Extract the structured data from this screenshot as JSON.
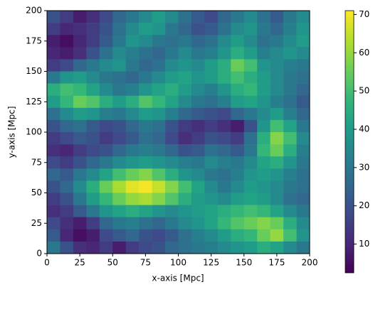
{
  "chart_data": {
    "type": "heatmap",
    "xlabel": "x-axis [Mpc]",
    "ylabel": "y-axis [Mpc]",
    "x": [
      5,
      15,
      25,
      35,
      45,
      55,
      65,
      75,
      85,
      95,
      105,
      115,
      125,
      135,
      145,
      155,
      165,
      175,
      185,
      195
    ],
    "y": [
      195,
      185,
      175,
      165,
      155,
      145,
      135,
      125,
      115,
      105,
      95,
      85,
      75,
      65,
      55,
      45,
      35,
      25,
      15,
      5
    ],
    "values": [
      [
        20,
        15,
        8,
        12,
        18,
        25,
        30,
        35,
        40,
        35,
        28,
        22,
        18,
        25,
        30,
        35,
        28,
        22,
        30,
        35
      ],
      [
        15,
        10,
        12,
        15,
        20,
        28,
        35,
        40,
        38,
        30,
        25,
        20,
        22,
        28,
        35,
        38,
        30,
        25,
        32,
        38
      ],
      [
        8,
        5,
        10,
        15,
        22,
        30,
        38,
        35,
        30,
        28,
        30,
        25,
        28,
        35,
        40,
        35,
        28,
        30,
        35,
        40
      ],
      [
        10,
        8,
        12,
        20,
        28,
        35,
        32,
        28,
        25,
        30,
        35,
        30,
        32,
        38,
        45,
        40,
        32,
        35,
        38,
        35
      ],
      [
        15,
        18,
        25,
        30,
        35,
        38,
        30,
        25,
        28,
        35,
        38,
        35,
        40,
        45,
        55,
        50,
        38,
        35,
        32,
        30
      ],
      [
        30,
        38,
        40,
        35,
        30,
        28,
        25,
        30,
        35,
        40,
        42,
        38,
        40,
        45,
        50,
        45,
        40,
        35,
        30,
        28
      ],
      [
        45,
        50,
        48,
        42,
        35,
        30,
        32,
        38,
        42,
        45,
        40,
        35,
        32,
        38,
        45,
        48,
        40,
        35,
        30,
        25
      ],
      [
        40,
        48,
        55,
        52,
        45,
        40,
        45,
        52,
        48,
        42,
        35,
        30,
        28,
        32,
        40,
        42,
        38,
        32,
        28,
        22
      ],
      [
        28,
        35,
        40,
        38,
        32,
        30,
        35,
        40,
        38,
        32,
        25,
        22,
        20,
        18,
        25,
        30,
        35,
        40,
        32,
        25
      ],
      [
        20,
        25,
        28,
        22,
        18,
        20,
        25,
        30,
        28,
        20,
        15,
        12,
        15,
        12,
        8,
        20,
        38,
        50,
        42,
        30
      ],
      [
        15,
        18,
        22,
        20,
        15,
        18,
        22,
        28,
        25,
        18,
        12,
        15,
        20,
        18,
        15,
        28,
        45,
        58,
        50,
        35
      ],
      [
        12,
        10,
        15,
        18,
        20,
        25,
        30,
        32,
        30,
        25,
        20,
        22,
        28,
        25,
        22,
        30,
        48,
        55,
        45,
        32
      ],
      [
        18,
        15,
        20,
        25,
        30,
        35,
        38,
        40,
        38,
        35,
        32,
        30,
        35,
        32,
        30,
        35,
        42,
        45,
        38,
        30
      ],
      [
        25,
        22,
        30,
        35,
        42,
        50,
        55,
        58,
        52,
        45,
        38,
        35,
        30,
        28,
        32,
        38,
        40,
        38,
        32,
        28
      ],
      [
        20,
        25,
        35,
        45,
        55,
        62,
        68,
        70,
        65,
        58,
        50,
        42,
        35,
        30,
        35,
        40,
        38,
        35,
        30,
        28
      ],
      [
        15,
        20,
        30,
        40,
        48,
        55,
        60,
        62,
        58,
        52,
        45,
        40,
        38,
        35,
        40,
        42,
        40,
        35,
        28,
        25
      ],
      [
        12,
        15,
        22,
        30,
        38,
        42,
        45,
        42,
        38,
        35,
        38,
        40,
        42,
        45,
        48,
        50,
        48,
        42,
        35,
        30
      ],
      [
        18,
        12,
        8,
        15,
        25,
        30,
        32,
        28,
        25,
        30,
        35,
        38,
        42,
        48,
        52,
        55,
        58,
        55,
        45,
        35
      ],
      [
        22,
        10,
        5,
        8,
        18,
        22,
        25,
        20,
        18,
        22,
        28,
        32,
        35,
        40,
        45,
        48,
        55,
        60,
        50,
        38
      ],
      [
        30,
        20,
        12,
        10,
        15,
        8,
        15,
        18,
        20,
        25,
        28,
        30,
        32,
        35,
        38,
        40,
        45,
        42,
        35,
        30
      ]
    ],
    "xlim": [
      0,
      200
    ],
    "ylim": [
      0,
      200
    ],
    "xticks": [
      0,
      25,
      50,
      75,
      100,
      125,
      150,
      175,
      200
    ],
    "yticks": [
      0,
      25,
      50,
      75,
      100,
      125,
      150,
      175,
      200
    ],
    "colormap": "viridis",
    "zlim": [
      2.5,
      71
    ],
    "zticks": [
      10,
      20,
      30,
      40,
      50,
      60,
      70
    ]
  }
}
